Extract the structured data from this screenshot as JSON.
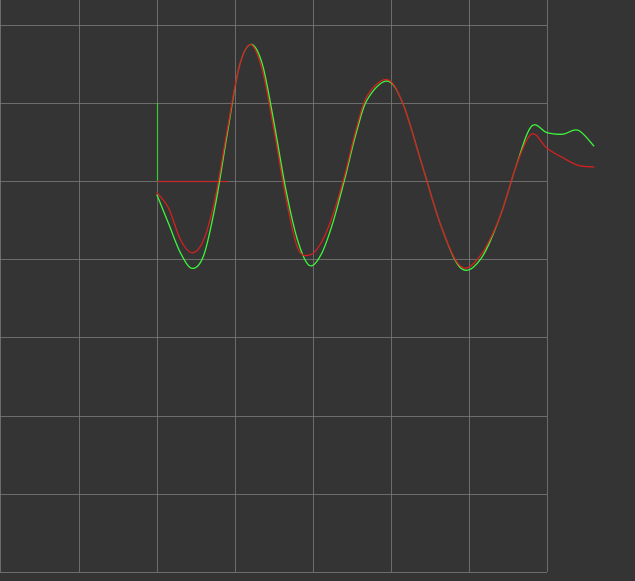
{
  "colors": {
    "background": "#343434",
    "grid": "#7a7a7a",
    "curve_a": "#3cf53c",
    "curve_b": "#d42020",
    "axis_x": "#c42a2a",
    "axis_y": "#33cc33",
    "overlap_highlight_a": "#d040c8",
    "overlap_highlight_b": "#40c8c8"
  },
  "chart_data": {
    "type": "line",
    "grid": true,
    "series": [
      {
        "key": "curve_a",
        "color": "#3cf53c",
        "x": [
          0.0,
          0.15,
          0.3,
          0.45,
          0.6,
          0.75,
          0.9,
          1.05,
          1.2,
          1.35,
          1.5,
          1.65,
          1.8,
          1.95,
          2.1,
          2.25,
          2.4,
          2.55,
          2.7,
          2.95,
          3.15,
          3.4,
          3.65,
          3.9,
          4.15,
          4.4,
          4.6,
          4.8,
          5.0,
          5.2,
          5.4,
          5.6
        ],
        "y": [
          -0.18,
          -0.55,
          -0.92,
          -1.12,
          -0.95,
          -0.3,
          0.6,
          1.45,
          1.75,
          1.5,
          0.75,
          -0.1,
          -0.75,
          -1.08,
          -0.95,
          -0.55,
          0.0,
          0.6,
          1.05,
          1.28,
          1.0,
          0.2,
          -0.6,
          -1.12,
          -1.0,
          -0.45,
          0.18,
          0.7,
          0.62,
          0.6,
          0.65,
          0.45
        ]
      },
      {
        "key": "curve_b",
        "color": "#d42020",
        "x": [
          0.0,
          0.15,
          0.3,
          0.45,
          0.6,
          0.75,
          0.9,
          1.05,
          1.2,
          1.35,
          1.5,
          1.65,
          1.8,
          1.95,
          2.1,
          2.25,
          2.4,
          2.55,
          2.7,
          2.95,
          3.15,
          3.4,
          3.65,
          3.9,
          4.15,
          4.4,
          4.6,
          4.8,
          5.0,
          5.2,
          5.4,
          5.6
        ],
        "y": [
          -0.15,
          -0.35,
          -0.75,
          -0.92,
          -0.75,
          -0.2,
          0.65,
          1.45,
          1.75,
          1.42,
          0.65,
          -0.2,
          -0.85,
          -0.95,
          -0.8,
          -0.45,
          0.05,
          0.65,
          1.1,
          1.3,
          1.0,
          0.2,
          -0.6,
          -1.1,
          -0.95,
          -0.45,
          0.18,
          0.6,
          0.42,
          0.3,
          0.2,
          0.18
        ]
      }
    ],
    "xlim": [
      -2,
      6
    ],
    "ylim": [
      -5,
      2
    ]
  }
}
